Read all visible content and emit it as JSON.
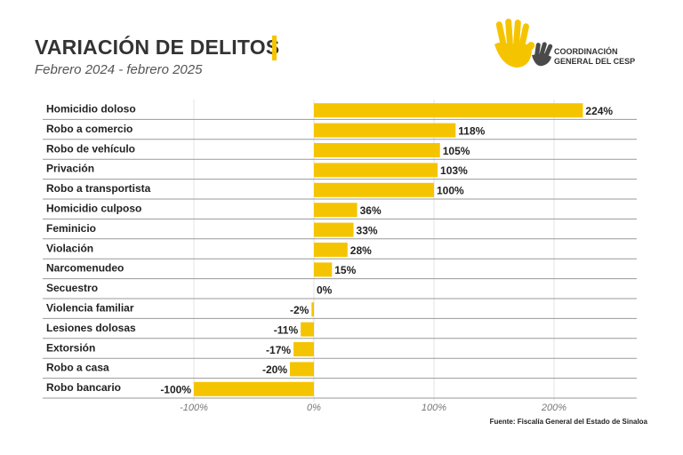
{
  "header": {
    "title": "VARIACIÓN DE DELITOS",
    "subtitle": "Febrero 2024 - febrero 2025"
  },
  "logo": {
    "line1": "COORDINACIÓN",
    "line2": "GENERAL DEL CESP",
    "icon": "hands-icon",
    "colors": {
      "primary": "#f5c400",
      "secondary": "#4a4a4a"
    }
  },
  "source": "Fuente: Fiscalía General del Estado de Sinaloa",
  "chart_data": {
    "type": "bar",
    "orientation": "horizontal",
    "title": "",
    "xlabel": "",
    "ylabel": "",
    "xlim": [
      -100,
      270
    ],
    "xticks": [
      -100,
      0,
      100,
      200
    ],
    "xtick_labels": [
      "-100%",
      "0%",
      "100%",
      "200%"
    ],
    "grid": true,
    "bar_color": "#f5c400",
    "categories": [
      "Homicidio doloso",
      "Robo a comercio",
      "Robo de vehículo",
      "Privación",
      "Robo a transportista",
      "Homicidio culposo",
      "Feminicio",
      "Violación",
      "Narcomenudeo",
      "Secuestro",
      "Violencia familiar",
      "Lesiones dolosas",
      "Extorsión",
      "Robo a casa",
      "Robo bancario"
    ],
    "values": [
      224,
      118,
      105,
      103,
      100,
      36,
      33,
      28,
      15,
      0,
      -2,
      -11,
      -17,
      -20,
      -100
    ],
    "value_labels": [
      "224%",
      "118%",
      "105%",
      "103%",
      "100%",
      "36%",
      "33%",
      "28%",
      "15%",
      "0%",
      "-2%",
      "-11%",
      "-17%",
      "-20%",
      "-100%"
    ]
  }
}
